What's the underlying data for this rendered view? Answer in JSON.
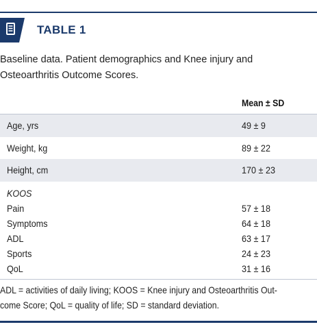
{
  "header": {
    "icon": "document-list-icon",
    "label": "TABLE 1",
    "accent_color": "#1b3a6b"
  },
  "caption": "Baseline data. Patient demographics and Knee injury and Osteoarthritis Outcome Scores.",
  "table": {
    "column_header": "Mean ± SD",
    "rows": [
      {
        "label": "Age, yrs",
        "value": "49 ± 9"
      },
      {
        "label": "Weight, kg",
        "value": "89 ± 22"
      },
      {
        "label": "Height, cm",
        "value": "170 ± 23"
      }
    ],
    "group": {
      "title": "KOOS",
      "items": [
        {
          "label": "Pain",
          "value": "57 ± 18"
        },
        {
          "label": "Symptoms",
          "value": "64 ± 18"
        },
        {
          "label": "ADL",
          "value": "63 ± 17"
        },
        {
          "label": "Sports",
          "value": "24 ± 23"
        },
        {
          "label": "QoL",
          "value": "31 ± 16"
        }
      ]
    }
  },
  "footnote": {
    "line1": "ADL = activities of daily living; KOOS = Knee injury and Osteoarthritis Out-",
    "line2": "come Score; QoL = quality of life; SD = standard deviation."
  }
}
